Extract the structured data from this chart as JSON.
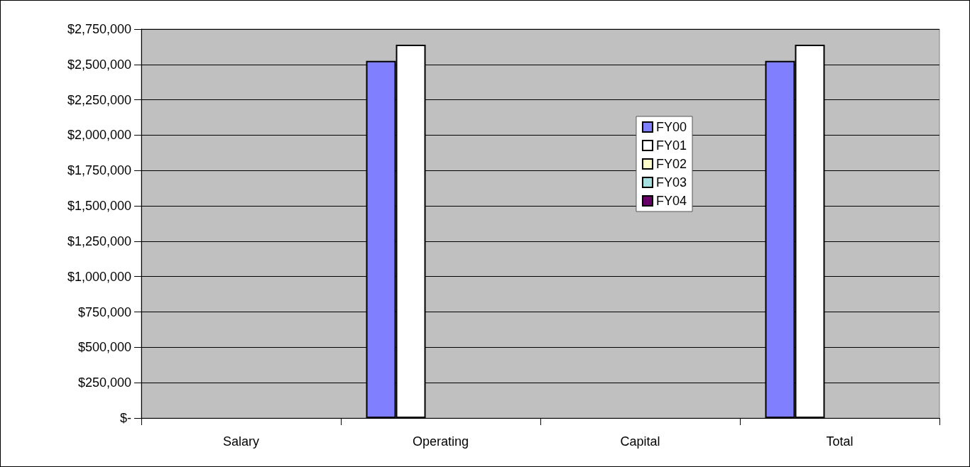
{
  "chart_data": {
    "type": "bar",
    "categories": [
      "Salary",
      "Operating",
      "Capital",
      "Total"
    ],
    "series": [
      {
        "name": "FY00",
        "color": "#8080ff",
        "values": [
          null,
          2525000,
          null,
          2525000
        ]
      },
      {
        "name": "FY01",
        "color": "#ffffff",
        "values": [
          null,
          2640000,
          null,
          2640000
        ]
      },
      {
        "name": "FY02",
        "color": "#ffffcc",
        "values": [
          null,
          null,
          null,
          null
        ]
      },
      {
        "name": "FY03",
        "color": "#a6e0e0",
        "values": [
          null,
          null,
          null,
          null
        ]
      },
      {
        "name": "FY04",
        "color": "#660066",
        "values": [
          null,
          null,
          null,
          null
        ]
      }
    ],
    "ylim": [
      0,
      2750000
    ],
    "yticks": [
      {
        "value": 0,
        "label": "$-"
      },
      {
        "value": 250000,
        "label": "$250,000"
      },
      {
        "value": 500000,
        "label": "$500,000"
      },
      {
        "value": 750000,
        "label": "$750,000"
      },
      {
        "value": 1000000,
        "label": "$1,000,000"
      },
      {
        "value": 1250000,
        "label": "$1,250,000"
      },
      {
        "value": 1500000,
        "label": "$1,500,000"
      },
      {
        "value": 1750000,
        "label": "$1,750,000"
      },
      {
        "value": 2000000,
        "label": "$2,000,000"
      },
      {
        "value": 2250000,
        "label": "$2,250,000"
      },
      {
        "value": 2500000,
        "label": "$2,500,000"
      },
      {
        "value": 2750000,
        "label": "$2,750,000"
      }
    ],
    "grid": "y",
    "legend": "right"
  }
}
